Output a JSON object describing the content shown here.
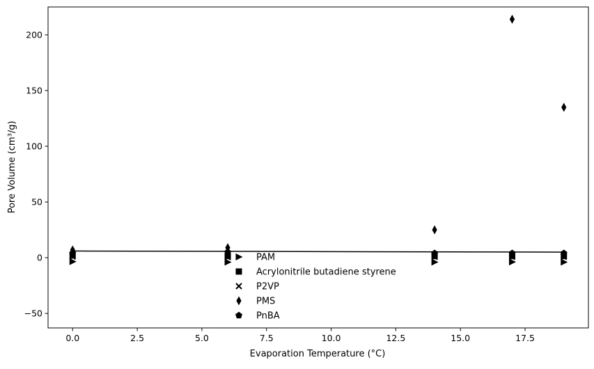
{
  "chart_data": {
    "type": "scatter",
    "title": "",
    "xlabel": "Evaporation Temperature (°C)",
    "ylabel": "Pore Volume (cm³/g)",
    "xlim": [
      -0.95,
      19.95
    ],
    "ylim": [
      -63,
      225
    ],
    "xticks": [
      0.0,
      2.5,
      5.0,
      7.5,
      10.0,
      12.5,
      15.0,
      17.5
    ],
    "xtick_labels": [
      "0.0",
      "2.5",
      "5.0",
      "7.5",
      "10.0",
      "12.5",
      "15.0",
      "17.5"
    ],
    "yticks": [
      -50,
      0,
      50,
      100,
      150,
      200
    ],
    "ytick_labels": [
      "−50",
      "0",
      "50",
      "100",
      "150",
      "200"
    ],
    "grid": false,
    "legend_position": "lower-center",
    "color": "#000000",
    "series": [
      {
        "name": "PAM",
        "marker": "triangle-right",
        "x": [
          0,
          6,
          14,
          17,
          19
        ],
        "y": [
          -3.5,
          -4,
          -4,
          -3.8,
          -4
        ]
      },
      {
        "name": "Acrylonitrile butadiene styrene",
        "marker": "square",
        "x": [
          0,
          6,
          14,
          17,
          19
        ],
        "y": [
          2,
          1.5,
          1.5,
          1.5,
          1.5
        ]
      },
      {
        "name": "P2VP",
        "marker": "x",
        "x": [
          0,
          6,
          14,
          17,
          19
        ],
        "y": [
          1,
          0.5,
          0.8,
          0.8,
          0.8
        ]
      },
      {
        "name": "PMS",
        "marker": "thin-diamond",
        "x": [
          0,
          6,
          14,
          17,
          19
        ],
        "y": [
          7,
          9,
          25,
          214,
          135
        ]
      },
      {
        "name": "PnBA",
        "marker": "pentagon",
        "x": [
          0,
          6,
          14,
          17,
          19
        ],
        "y": [
          4,
          5,
          4,
          4,
          4
        ]
      }
    ],
    "trend_line": {
      "x": [
        0,
        19
      ],
      "y": [
        6,
        5
      ]
    }
  }
}
